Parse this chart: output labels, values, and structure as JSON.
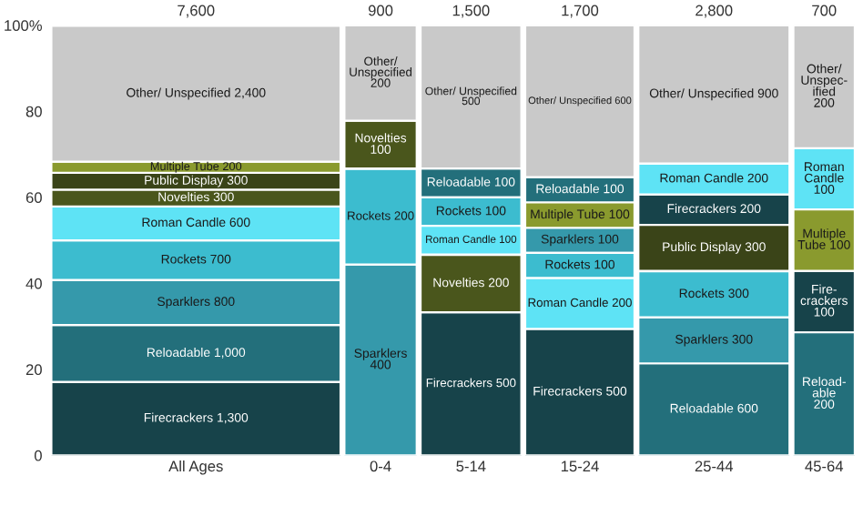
{
  "chart_data": {
    "type": "bar",
    "categories": [
      "All Ages",
      "0-4",
      "5-14",
      "15-24",
      "25-44",
      "45-64"
    ],
    "annotations": [
      "7,600",
      "900",
      "1,500",
      "1,700",
      "2,800",
      "700"
    ],
    "ylim": [
      0,
      100
    ],
    "yticks": [
      0,
      20,
      40,
      60,
      80,
      {
        "value": 100,
        "label": "100%"
      }
    ],
    "grid": false,
    "legend": false,
    "series": [
      {
        "color": "#17434a",
        "values": [
          17.1,
          null,
          33.3,
          29.4,
          7.1,
          14.3
        ],
        "base": [
          0,
          null,
          0,
          0,
          53.6,
          28.6
        ],
        "value_labels": [
          "Firecrackers 1,300",
          null,
          "Firecrackers 500",
          "Firecrackers 500",
          "Firecrackers 200",
          "Fire-\ncrackers\n100"
        ]
      },
      {
        "color": "#236f7b",
        "values": [
          13.2,
          null,
          6.7,
          5.9,
          21.4,
          28.6
        ],
        "base": [
          17.1,
          null,
          60.0,
          58.8,
          0,
          0
        ],
        "value_labels": [
          "Reloadable 1,000",
          null,
          "Reloadable 100",
          "Reloadable 100",
          "Reloadable 600",
          "Reload-\nable\n200"
        ]
      },
      {
        "color": "#3599ab",
        "values": [
          10.5,
          44.4,
          null,
          5.9,
          10.7,
          null
        ],
        "base": [
          30.3,
          0,
          null,
          47.1,
          21.4,
          null
        ],
        "value_labels": [
          "Sparklers 800",
          "Sparklers\n400",
          null,
          "Sparklers 100",
          "Sparklers 300",
          null
        ]
      },
      {
        "color": "#3cbccf",
        "values": [
          9.2,
          22.2,
          6.7,
          5.9,
          10.7,
          null
        ],
        "base": [
          40.8,
          44.4,
          53.3,
          41.2,
          32.1,
          null
        ],
        "value_labels": [
          "Rockets 700",
          "Rockets 200",
          "Rockets 100",
          "Rockets 100",
          "Rockets 300",
          null
        ]
      },
      {
        "color": "#5ee3f5",
        "values": [
          7.9,
          null,
          6.7,
          11.8,
          7.1,
          14.3
        ],
        "base": [
          50.0,
          null,
          46.7,
          29.4,
          60.7,
          57.1
        ],
        "value_labels": [
          "Roman Candle 600",
          null,
          "Roman Candle 100",
          "Roman Candle 200",
          "Roman Candle 200",
          "Roman\nCandle\n100"
        ]
      },
      {
        "color": "#4a561c",
        "values": [
          3.9,
          11.1,
          13.3,
          null,
          null,
          null
        ],
        "base": [
          57.9,
          66.7,
          33.3,
          null,
          null,
          null
        ],
        "value_labels": [
          "Novelties 300",
          "Novelties\n100",
          "Novelties 200",
          null,
          null,
          null
        ]
      },
      {
        "color": "#3a4418",
        "values": [
          3.9,
          null,
          null,
          null,
          10.7,
          null
        ],
        "base": [
          61.8,
          null,
          null,
          null,
          42.9,
          null
        ],
        "value_labels": [
          "Public Display 300",
          null,
          null,
          null,
          "Public Display 300",
          null
        ]
      },
      {
        "color": "#8a9a2e",
        "values": [
          2.6,
          null,
          null,
          5.9,
          null,
          14.3
        ],
        "base": [
          65.7,
          null,
          null,
          52.9,
          null,
          42.9
        ],
        "value_labels": [
          "Multiple Tube 200",
          null,
          null,
          "Multiple Tube 100",
          null,
          "Multiple\nTube 100"
        ]
      },
      {
        "color": "#c9c9c9",
        "values": [
          31.6,
          22.2,
          33.3,
          35.3,
          32.1,
          28.6
        ],
        "base": [
          68.3,
          77.8,
          66.7,
          64.7,
          67.9,
          71.4
        ],
        "value_labels": [
          "Other/ Unspecified 2,400",
          "Other/\nUnspecified\n200",
          "Other/ Unspecified\n500",
          "Other/ Unspecified 600",
          "Other/ Unspecified 900",
          "Other/\nUnspec-\nified\n200"
        ]
      }
    ]
  }
}
